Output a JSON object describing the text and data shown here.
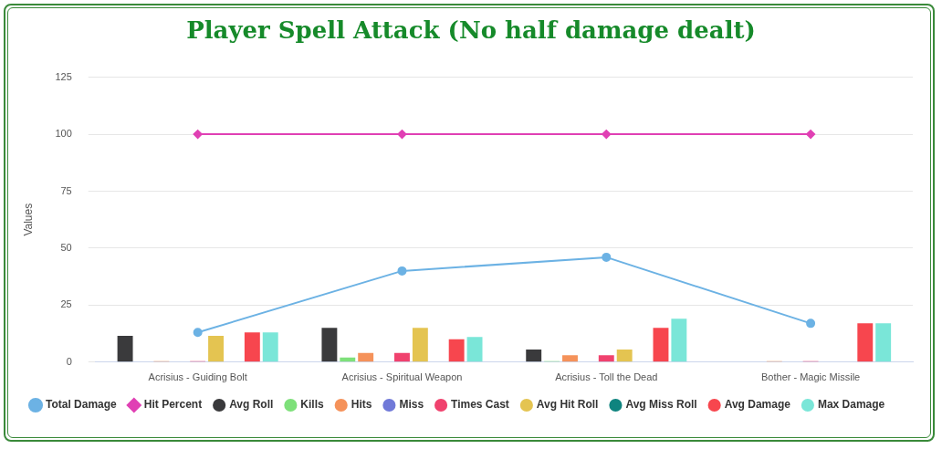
{
  "chart_data": {
    "type": "bar",
    "title": "Player Spell Attack (No half damage dealt)",
    "ylabel": "Values",
    "categories": [
      "Acrisius - Guiding Bolt",
      "Acrisius - Spiritual Weapon",
      "Acrisius - Toll the Dead",
      "Bother - Magic Missile"
    ],
    "ylim": [
      0,
      125
    ],
    "yticks": [
      0,
      25,
      50,
      75,
      100,
      125
    ],
    "grid": "y",
    "legend": "bottom",
    "series": [
      {
        "name": "Total Damage",
        "type": "line",
        "marker": "circle",
        "color": "#6cb2e4",
        "values": [
          13,
          40,
          46,
          17
        ]
      },
      {
        "name": "Avg Roll",
        "color": "#3a3a3c",
        "values": [
          11.5,
          15,
          5.5,
          null
        ]
      },
      {
        "name": "Kills",
        "color": "#7ee07a",
        "values": [
          null,
          2,
          0,
          null
        ]
      },
      {
        "name": "Hits",
        "color": "#f5925a",
        "values": [
          0,
          4,
          3,
          0
        ]
      },
      {
        "name": "Miss",
        "color": "#7079d8",
        "values": [
          null,
          null,
          null,
          null
        ]
      },
      {
        "name": "Times Cast",
        "color": "#f0426e",
        "values": [
          0,
          4,
          3,
          0
        ]
      },
      {
        "name": "Avg Hit Roll",
        "color": "#e4c451",
        "values": [
          11.5,
          15,
          5.5,
          null
        ]
      },
      {
        "name": "Avg Miss Roll",
        "color": "#0f847f",
        "values": [
          null,
          null,
          null,
          null
        ]
      },
      {
        "name": "Avg Damage",
        "color": "#f7464e",
        "values": [
          13,
          10,
          15,
          17
        ]
      },
      {
        "name": "Max Damage",
        "color": "#7ae6d8",
        "values": [
          13,
          11,
          19,
          17
        ]
      },
      {
        "name": "Hit Percent",
        "type": "line",
        "marker": "diamond",
        "color": "#e040b4",
        "values": [
          100,
          100,
          100,
          100
        ]
      }
    ]
  }
}
